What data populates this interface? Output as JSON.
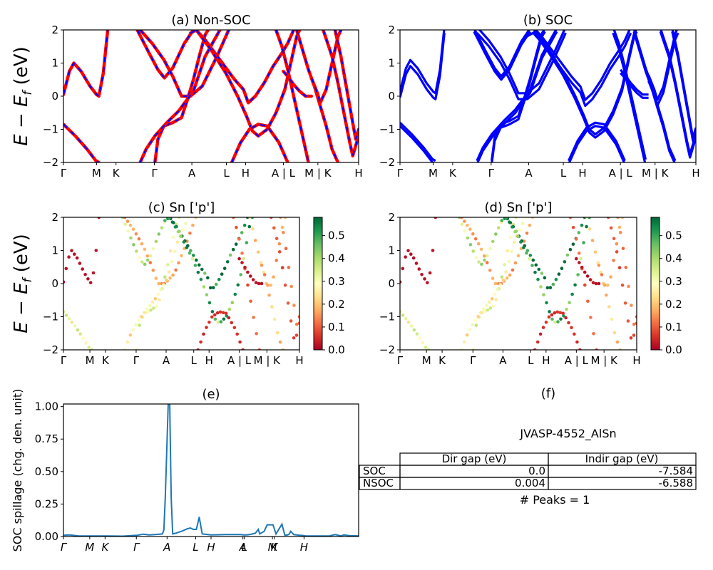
{
  "colors": {
    "nonsoc_line": "#ff0000",
    "nonsoc_dash": "#0000ff",
    "soc_line": "#0000ff",
    "spillage_line": "#1f77b4",
    "colormap": [
      "#a50026",
      "#d73027",
      "#f46d43",
      "#fdae61",
      "#fee08b",
      "#ffffbf",
      "#d9ef8b",
      "#a6d96a",
      "#66bd63",
      "#1a9850",
      "#006837"
    ]
  },
  "chart_data": [
    {
      "id": "a",
      "type": "line",
      "title": "(a) Non-SOC",
      "ylabel": "E − E_f (eV)",
      "ylabel_main": "E − E",
      "ylabel_sub": "f",
      "ylabel_unit": " (eV)",
      "ylim": [
        -2,
        2
      ],
      "yticks": [
        "−2",
        "−1",
        "0",
        "1",
        "2"
      ],
      "xlim": [
        0,
        1
      ],
      "xticks": [
        {
          "label": "Γ",
          "x": 0.0
        },
        {
          "label": "M",
          "x": 0.112
        },
        {
          "label": "K",
          "x": 0.178
        },
        {
          "label": "Γ",
          "x": 0.308
        },
        {
          "label": "A",
          "x": 0.435
        },
        {
          "label": "L",
          "x": 0.552
        },
        {
          "label": "H",
          "x": 0.617
        },
        {
          "label": "A | L",
          "x": 0.745
        },
        {
          "label": "M | K",
          "x": 0.862
        },
        {
          "label": "H",
          "x": 1.0
        }
      ],
      "series": [
        {
          "points": [
            [
              0,
              0.05
            ],
            [
              0.02,
              0.75
            ],
            [
              0.035,
              1.0
            ],
            [
              0.06,
              0.75
            ],
            [
              0.09,
              0.3
            ],
            [
              0.112,
              0.05
            ],
            [
              0.12,
              0.0
            ],
            [
              0.135,
              0.7
            ],
            [
              0.15,
              2.0
            ]
          ]
        },
        {
          "points": [
            [
              0,
              -0.85
            ],
            [
              0.04,
              -1.2
            ],
            [
              0.08,
              -1.6
            ],
            [
              0.11,
              -1.95
            ],
            [
              0.12,
              -2.0
            ]
          ]
        },
        {
          "points": [
            [
              0.25,
              2.0
            ],
            [
              0.29,
              1.3
            ],
            [
              0.32,
              0.8
            ],
            [
              0.342,
              0.55
            ],
            [
              0.37,
              0.85
            ],
            [
              0.41,
              1.6
            ],
            [
              0.44,
              2.0
            ]
          ]
        },
        {
          "points": [
            [
              0.26,
              2.0
            ],
            [
              0.3,
              1.6
            ],
            [
              0.34,
              1.1
            ],
            [
              0.37,
              0.6
            ],
            [
              0.39,
              0.2
            ],
            [
              0.4,
              0.0
            ],
            [
              0.43,
              0.0
            ],
            [
              0.47,
              0.3
            ],
            [
              0.52,
              1.2
            ],
            [
              0.56,
              2.0
            ]
          ]
        },
        {
          "points": [
            [
              0.31,
              -2.0
            ],
            [
              0.32,
              -1.3
            ],
            [
              0.34,
              -0.9
            ],
            [
              0.37,
              -0.8
            ],
            [
              0.4,
              -0.65
            ],
            [
              0.42,
              -0.1
            ],
            [
              0.44,
              0.5
            ],
            [
              0.46,
              1.2
            ],
            [
              0.48,
              1.85
            ],
            [
              0.49,
              2.0
            ]
          ]
        },
        {
          "points": [
            [
              0.26,
              -2.0
            ],
            [
              0.28,
              -1.6
            ],
            [
              0.31,
              -1.2
            ],
            [
              0.35,
              -0.8
            ],
            [
              0.39,
              -0.45
            ],
            [
              0.44,
              0.15
            ],
            [
              0.48,
              1.2
            ],
            [
              0.53,
              2.0
            ]
          ]
        },
        {
          "points": [
            [
              0.43,
              1.9
            ],
            [
              0.45,
              2.0
            ],
            [
              0.48,
              1.7
            ],
            [
              0.53,
              1.1
            ],
            [
              0.58,
              0.5
            ],
            [
              0.61,
              0.2
            ],
            [
              0.626,
              -0.2
            ],
            [
              0.65,
              0.0
            ],
            [
              0.68,
              0.4
            ],
            [
              0.71,
              0.9
            ],
            [
              0.74,
              1.3
            ],
            [
              0.76,
              1.6
            ],
            [
              0.78,
              2.0
            ]
          ]
        },
        {
          "points": [
            [
              0.45,
              2.0
            ],
            [
              0.5,
              1.4
            ],
            [
              0.55,
              0.7
            ],
            [
              0.59,
              0.0
            ],
            [
              0.62,
              -0.6
            ],
            [
              0.64,
              -1.05
            ],
            [
              0.66,
              -1.2
            ],
            [
              0.69,
              -1.0
            ],
            [
              0.72,
              -0.5
            ],
            [
              0.75,
              0.2
            ],
            [
              0.77,
              1.0
            ],
            [
              0.79,
              1.8
            ],
            [
              0.8,
              2.0
            ]
          ]
        },
        {
          "points": [
            [
              0.57,
              -2.0
            ],
            [
              0.6,
              -1.4
            ],
            [
              0.63,
              -1.0
            ],
            [
              0.66,
              -0.85
            ],
            [
              0.69,
              -0.9
            ],
            [
              0.73,
              -1.4
            ],
            [
              0.76,
              -2.0
            ]
          ]
        },
        {
          "points": [
            [
              0.72,
              2.0
            ],
            [
              0.74,
              1.5
            ],
            [
              0.76,
              0.8
            ],
            [
              0.78,
              0.0
            ],
            [
              0.8,
              -0.8
            ],
            [
              0.82,
              -1.6
            ],
            [
              0.83,
              -2.0
            ]
          ]
        },
        {
          "points": [
            [
              0.745,
              0.75
            ],
            [
              0.76,
              0.6
            ],
            [
              0.78,
              0.35
            ],
            [
              0.8,
              0.15
            ],
            [
              0.82,
              0.0
            ],
            [
              0.84,
              0.0
            ]
          ]
        },
        {
          "points": [
            [
              0.79,
              2.0
            ],
            [
              0.81,
              1.4
            ],
            [
              0.83,
              0.8
            ],
            [
              0.85,
              0.3
            ],
            [
              0.87,
              -0.3
            ],
            [
              0.89,
              -0.9
            ],
            [
              0.91,
              -1.6
            ],
            [
              0.93,
              -2.0
            ]
          ]
        },
        {
          "points": [
            [
              0.84,
              0.55
            ],
            [
              0.86,
              0.1
            ],
            [
              0.87,
              -0.2
            ],
            [
              0.89,
              0.2
            ],
            [
              0.91,
              1.0
            ],
            [
              0.93,
              1.8
            ],
            [
              0.94,
              2.0
            ]
          ]
        },
        {
          "points": [
            [
              0.88,
              2.0
            ],
            [
              0.91,
              1.2
            ],
            [
              0.93,
              0.4
            ],
            [
              0.95,
              -0.5
            ],
            [
              0.97,
              -1.4
            ],
            [
              0.98,
              -1.8
            ],
            [
              1.0,
              -1.2
            ]
          ]
        },
        {
          "points": [
            [
              0.92,
              2.0
            ],
            [
              0.94,
              1.2
            ],
            [
              0.96,
              0.2
            ],
            [
              0.98,
              -0.8
            ],
            [
              0.99,
              -1.3
            ],
            [
              1.0,
              -1.0
            ]
          ]
        }
      ]
    },
    {
      "id": "b",
      "type": "line",
      "title": "(b) SOC",
      "ylim": [
        -2,
        2
      ],
      "yticks": [
        "−2",
        "−1",
        "0",
        "1",
        "2"
      ],
      "xlim": [
        0,
        1
      ],
      "xticks": [
        {
          "label": "Γ",
          "x": 0.0
        },
        {
          "label": "M",
          "x": 0.112
        },
        {
          "label": "K",
          "x": 0.178
        },
        {
          "label": "Γ",
          "x": 0.308
        },
        {
          "label": "A",
          "x": 0.435
        },
        {
          "label": "L",
          "x": 0.552
        },
        {
          "label": "H",
          "x": 0.617
        },
        {
          "label": "A | L",
          "x": 0.745
        },
        {
          "label": "M | K",
          "x": 0.862
        },
        {
          "label": "H",
          "x": 1.0
        }
      ]
    },
    {
      "id": "c",
      "type": "scatter",
      "title": "(c)  Sn ['p']",
      "ylabel": "E − E_f (eV)",
      "ylabel_main": "E − E",
      "ylabel_sub": "f",
      "ylabel_unit": " (eV)",
      "ylim": [
        -2,
        2
      ],
      "yticks": [
        "−2",
        "−1",
        "0",
        "1",
        "2"
      ],
      "xlim": [
        0,
        1
      ],
      "xticks": [
        {
          "label": "Γ",
          "x": 0.0
        },
        {
          "label": "M",
          "x": 0.112
        },
        {
          "label": "K",
          "x": 0.178
        },
        {
          "label": "Γ",
          "x": 0.308
        },
        {
          "label": "A",
          "x": 0.435
        },
        {
          "label": "L",
          "x": 0.552
        },
        {
          "label": "H",
          "x": 0.617
        },
        {
          "label": "A | L",
          "x": 0.745
        },
        {
          "label": "M | K",
          "x": 0.862
        },
        {
          "label": "H",
          "x": 1.0
        }
      ],
      "colorbar": {
        "min": 0.0,
        "max": 0.58,
        "ticks": [
          "0.0",
          "0.1",
          "0.2",
          "0.3",
          "0.4",
          "0.5"
        ]
      },
      "band_weights": [
        0.02,
        0.3,
        0.35,
        0.15,
        0.3,
        0.25,
        0.55,
        0.45,
        0.05,
        0.1,
        0.02,
        0.2,
        0.15,
        0.08,
        0.12
      ]
    },
    {
      "id": "d",
      "type": "scatter",
      "title": "(d) Sn ['p']",
      "ylim": [
        -2,
        2
      ],
      "yticks": [
        "−2",
        "−1",
        "0",
        "1",
        "2"
      ],
      "xlim": [
        0,
        1
      ],
      "xticks": [
        {
          "label": "Γ",
          "x": 0.0
        },
        {
          "label": "M",
          "x": 0.112
        },
        {
          "label": "K",
          "x": 0.178
        },
        {
          "label": "Γ",
          "x": 0.308
        },
        {
          "label": "A",
          "x": 0.435
        },
        {
          "label": "L",
          "x": 0.552
        },
        {
          "label": "H",
          "x": 0.617
        },
        {
          "label": "A | L",
          "x": 0.745
        },
        {
          "label": "M | K",
          "x": 0.862
        },
        {
          "label": "H",
          "x": 1.0
        }
      ],
      "colorbar": {
        "min": 0.0,
        "max": 0.58,
        "ticks": [
          "0.0",
          "0.1",
          "0.2",
          "0.3",
          "0.4",
          "0.5"
        ]
      },
      "band_weights": [
        0.02,
        0.3,
        0.35,
        0.15,
        0.3,
        0.25,
        0.55,
        0.45,
        0.05,
        0.1,
        0.02,
        0.2,
        0.15,
        0.08,
        0.12
      ]
    },
    {
      "id": "e",
      "type": "line",
      "title": "(e)",
      "ylabel": "SOC spillage (chg. den. unit)",
      "ylim": [
        0,
        1.02
      ],
      "yticks": [
        {
          "label": "0.00",
          "v": 0.0
        },
        {
          "label": "0.25",
          "v": 0.25
        },
        {
          "label": "0.50",
          "v": 0.5
        },
        {
          "label": "0.75",
          "v": 0.75
        },
        {
          "label": "1.00",
          "v": 1.0
        }
      ],
      "xlim": [
        0,
        1
      ],
      "xticks": [
        {
          "label": "Γ",
          "x": 0.0
        },
        {
          "label": "M",
          "x": 0.089
        },
        {
          "label": "K",
          "x": 0.141
        },
        {
          "label": "Γ",
          "x": 0.247
        },
        {
          "label": "A",
          "x": 0.351
        },
        {
          "label": "L",
          "x": 0.448
        },
        {
          "label": "H",
          "x": 0.5
        },
        {
          "label": "A",
          "x": 0.608
        },
        {
          "label": "L",
          "x": 0.613
        },
        {
          "label": "M",
          "x": 0.708
        },
        {
          "label": "K",
          "x": 0.714
        },
        {
          "label": "H",
          "x": 0.815
        }
      ],
      "x": [
        0,
        0.02,
        0.05,
        0.1,
        0.15,
        0.2,
        0.25,
        0.27,
        0.29,
        0.31,
        0.335,
        0.34,
        0.345,
        0.355,
        0.36,
        0.365,
        0.37,
        0.38,
        0.4,
        0.42,
        0.43,
        0.44,
        0.45,
        0.455,
        0.46,
        0.47,
        0.5,
        0.55,
        0.58,
        0.6,
        0.61,
        0.62,
        0.63,
        0.64,
        0.65,
        0.66,
        0.665,
        0.68,
        0.69,
        0.7,
        0.71,
        0.72,
        0.74,
        0.75,
        0.76,
        0.765,
        0.77,
        0.78,
        0.8,
        0.81,
        0.815,
        0.82,
        0.84,
        0.9,
        0.92,
        0.94,
        0.95,
        0.97,
        1.0
      ],
      "values": [
        0.01,
        0.012,
        0.005,
        0.004,
        0.004,
        0.003,
        0.01,
        0.018,
        0.012,
        0.015,
        0.02,
        0.05,
        0.3,
        1.03,
        1.03,
        0.3,
        0.02,
        0.025,
        0.04,
        0.06,
        0.065,
        0.055,
        0.055,
        0.1,
        0.15,
        0.02,
        0.012,
        0.015,
        0.015,
        0.015,
        0.012,
        0.012,
        0.015,
        0.02,
        0.025,
        0.055,
        0.02,
        0.04,
        0.09,
        0.09,
        0.09,
        0.02,
        0.095,
        0.01,
        0.012,
        0.02,
        0.04,
        0.015,
        0.01,
        0.008,
        0.006,
        0.005,
        0.004,
        0.004,
        0.015,
        0.005,
        0.012,
        0.006,
        0.005
      ]
    }
  ],
  "panel_f": {
    "title": "(f)",
    "material": "JVASP-4552_AlSn",
    "table": {
      "headers": [
        "",
        "Dir gap (eV)",
        "Indir gap (eV)"
      ],
      "rows": [
        {
          "label": "SOC",
          "dir": "0.0",
          "indir": "-7.584"
        },
        {
          "label": "NSOC",
          "dir": "0.004",
          "indir": "-6.588"
        }
      ]
    },
    "peaks": "# Peaks = 1"
  }
}
